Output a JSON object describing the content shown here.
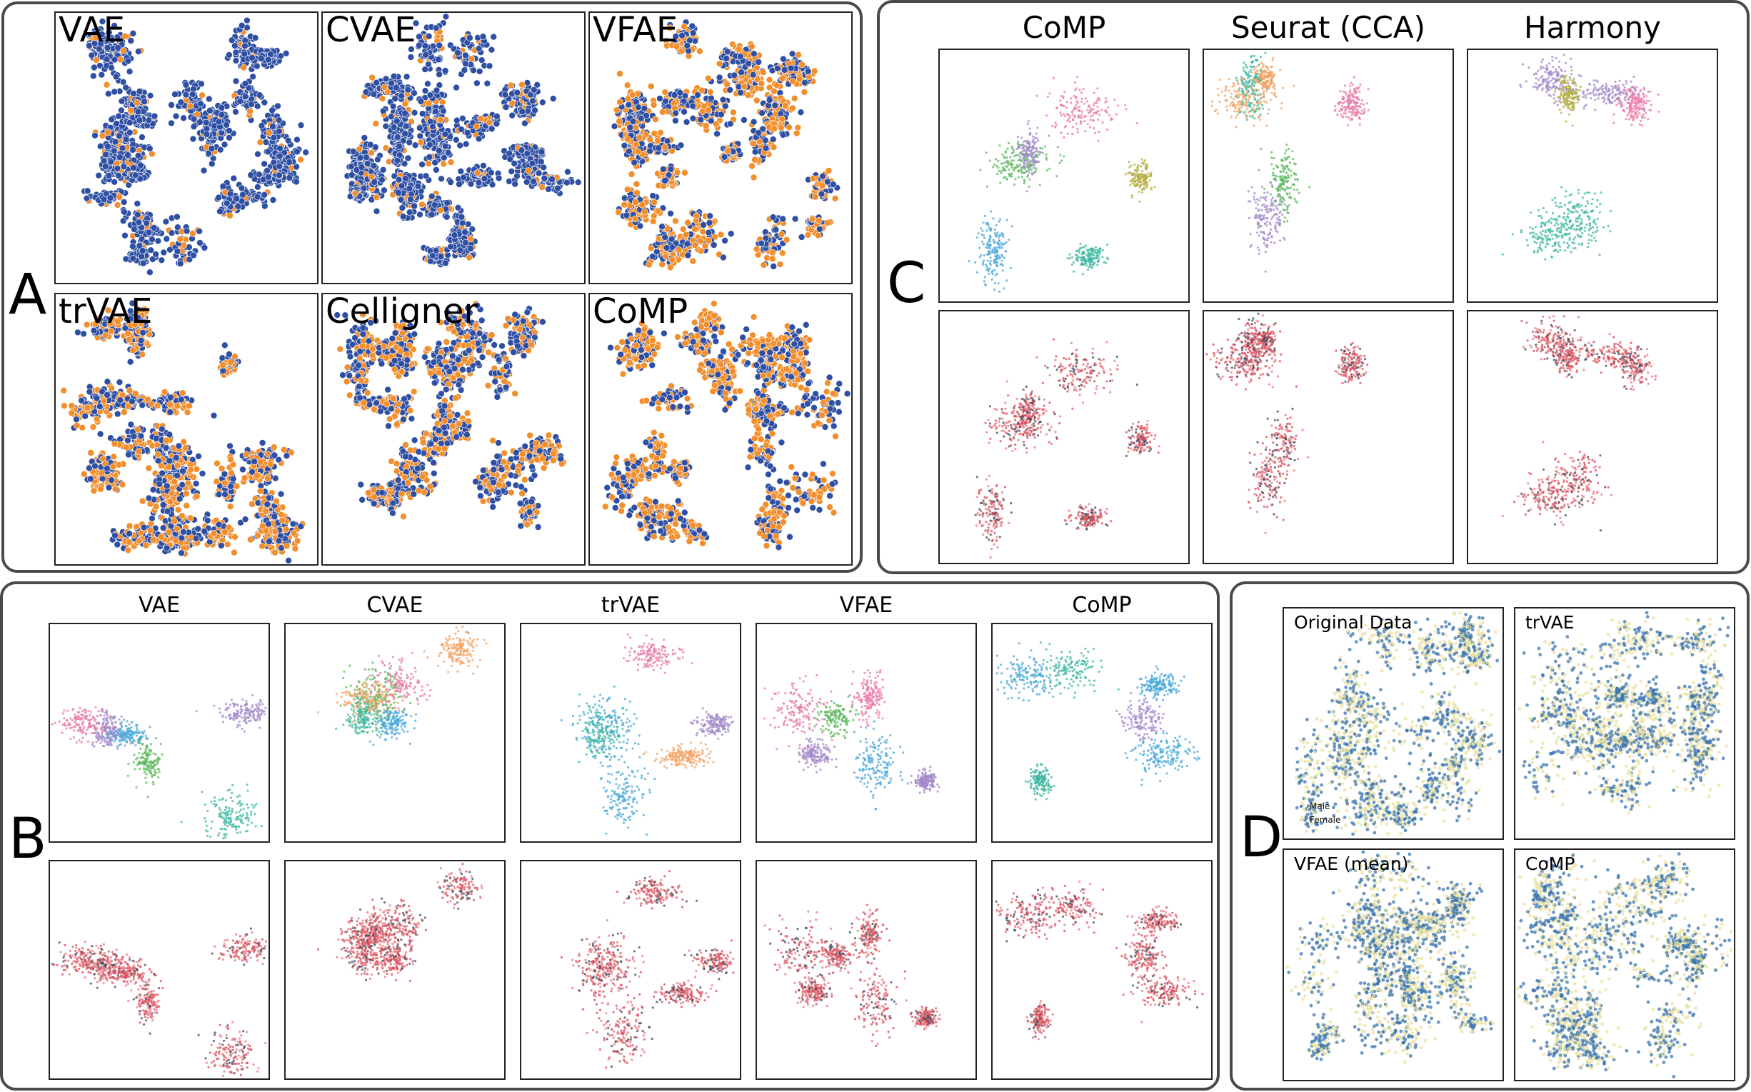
{
  "colors": {
    "blue": "#2e4fa3",
    "orange": "#f28e2b",
    "cat_teal": "#3fb8a0",
    "cat_pink": "#e97aa6",
    "cat_lightblue": "#4aa8d8",
    "cat_olive": "#b5b04a",
    "cat_green": "#5cb85c",
    "cat_peach": "#f4a261",
    "cat_purple": "#a18ac9",
    "red": "#d94a55",
    "lightred": "#e8747f",
    "slate": "#3f4a5a",
    "steel": "#3a74ad",
    "khaki": "#e9e1a4"
  },
  "panelA": {
    "letter": "A",
    "plots": [
      {
        "title": "VAE"
      },
      {
        "title": "CVAE"
      },
      {
        "title": "VFAE"
      },
      {
        "title": "trVAE"
      },
      {
        "title": "Celligner"
      },
      {
        "title": "CoMP"
      }
    ]
  },
  "panelC": {
    "letter": "C",
    "columns": [
      "CoMP",
      "Seurat (CCA)",
      "Harmony"
    ]
  },
  "panelB": {
    "letter": "B",
    "columns": [
      "VAE",
      "CVAE",
      "trVAE",
      "VFAE",
      "CoMP"
    ]
  },
  "panelD": {
    "letter": "D",
    "plots": [
      {
        "title": "Original Data"
      },
      {
        "title": "trVAE"
      },
      {
        "title": "VFAE (mean)"
      },
      {
        "title": "CoMP"
      }
    ],
    "legend": {
      "male": "Male",
      "female": "Female"
    }
  }
}
